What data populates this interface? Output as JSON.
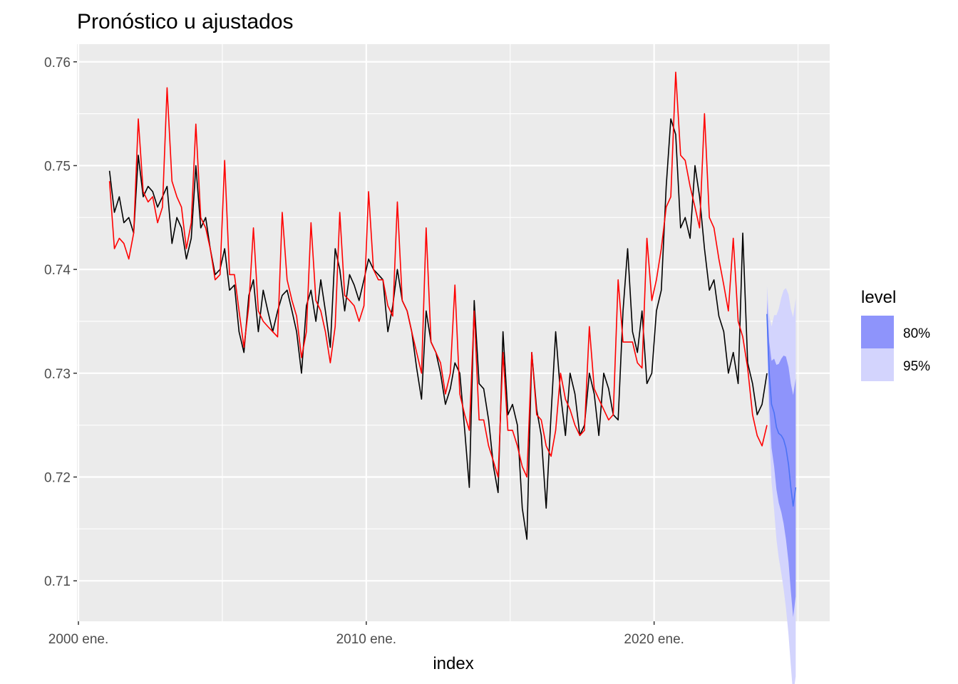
{
  "chart_data": {
    "type": "line",
    "title": "Pronóstico u ajustados",
    "xlabel": "index",
    "ylabel": "",
    "xlim": [
      1999.95,
      2026.1
    ],
    "ylim": [
      0.7061,
      0.7617
    ],
    "y_ticks": [
      "0.71",
      "0.72",
      "0.73",
      "0.74",
      "0.75",
      "0.76"
    ],
    "y_tick_values": [
      0.71,
      0.72,
      0.73,
      0.74,
      0.75,
      0.76
    ],
    "x_ticks": [
      "2000 ene.",
      "2010 ene.",
      "2020 ene."
    ],
    "x_tick_values": [
      2000,
      2010,
      2020
    ],
    "grid": true,
    "legend": {
      "title": "level",
      "position": "right",
      "items": [
        {
          "label": "80%",
          "color": "#8e94fb"
        },
        {
          "label": "95%",
          "color": "#d3d4fd"
        }
      ]
    },
    "colors": {
      "panel": "#ebebeb",
      "grid": "#ffffff",
      "actual": "#000000",
      "fitted": "#ff0000",
      "forecast_mean": "#4c72f5",
      "band80": "#8e94fb",
      "band95": "#d3d4fd"
    },
    "series": [
      {
        "color": "#000000",
        "x": [
          2001.08,
          2001.25,
          2001.42,
          2001.58,
          2001.75,
          2001.92,
          2002.08,
          2002.25,
          2002.42,
          2002.58,
          2002.75,
          2002.92,
          2003.08,
          2003.25,
          2003.42,
          2003.58,
          2003.75,
          2003.92,
          2004.08,
          2004.25,
          2004.42,
          2004.58,
          2004.75,
          2004.92,
          2005.08,
          2005.25,
          2005.42,
          2005.58,
          2005.75,
          2005.92,
          2006.08,
          2006.25,
          2006.42,
          2006.58,
          2006.75,
          2006.92,
          2007.08,
          2007.25,
          2007.42,
          2007.58,
          2007.75,
          2007.92,
          2008.08,
          2008.25,
          2008.42,
          2008.58,
          2008.75,
          2008.92,
          2009.08,
          2009.25,
          2009.42,
          2009.58,
          2009.75,
          2009.92,
          2010.08,
          2010.25,
          2010.42,
          2010.58,
          2010.75,
          2010.92,
          2011.08,
          2011.25,
          2011.42,
          2011.58,
          2011.75,
          2011.92,
          2012.08,
          2012.25,
          2012.42,
          2012.58,
          2012.75,
          2012.92,
          2013.08,
          2013.25,
          2013.42,
          2013.58,
          2013.75,
          2013.92,
          2014.08,
          2014.25,
          2014.42,
          2014.58,
          2014.75,
          2014.92,
          2015.08,
          2015.25,
          2015.42,
          2015.58,
          2015.75,
          2015.92,
          2016.08,
          2016.25,
          2016.42,
          2016.58,
          2016.75,
          2016.92,
          2017.08,
          2017.25,
          2017.42,
          2017.58,
          2017.75,
          2017.92,
          2018.08,
          2018.25,
          2018.42,
          2018.58,
          2018.75,
          2018.92,
          2019.08,
          2019.25,
          2019.42,
          2019.58,
          2019.75,
          2019.92,
          2020.08,
          2020.25,
          2020.42,
          2020.58,
          2020.75,
          2020.92,
          2021.08,
          2021.25,
          2021.42,
          2021.58,
          2021.75,
          2021.92,
          2022.08,
          2022.25,
          2022.42,
          2022.58,
          2022.75,
          2022.92,
          2023.08,
          2023.25,
          2023.42,
          2023.58,
          2023.75,
          2023.92
        ],
        "y": [
          0.7495,
          0.7455,
          0.747,
          0.7445,
          0.745,
          0.7435,
          0.751,
          0.747,
          0.748,
          0.7475,
          0.746,
          0.747,
          0.748,
          0.7425,
          0.745,
          0.744,
          0.741,
          0.743,
          0.75,
          0.744,
          0.745,
          0.742,
          0.7395,
          0.74,
          0.742,
          0.738,
          0.7385,
          0.734,
          0.732,
          0.7375,
          0.739,
          0.734,
          0.738,
          0.736,
          0.734,
          0.736,
          0.7375,
          0.738,
          0.736,
          0.734,
          0.73,
          0.7365,
          0.738,
          0.735,
          0.739,
          0.736,
          0.7325,
          0.742,
          0.74,
          0.736,
          0.7395,
          0.7385,
          0.737,
          0.739,
          0.741,
          0.74,
          0.7395,
          0.739,
          0.734,
          0.7365,
          0.74,
          0.737,
          0.736,
          0.734,
          0.7305,
          0.7275,
          0.736,
          0.733,
          0.732,
          0.73,
          0.727,
          0.7285,
          0.731,
          0.73,
          0.7245,
          0.719,
          0.737,
          0.729,
          0.7285,
          0.7255,
          0.721,
          0.7185,
          0.734,
          0.726,
          0.727,
          0.725,
          0.717,
          0.714,
          0.732,
          0.7265,
          0.724,
          0.717,
          0.726,
          0.734,
          0.728,
          0.724,
          0.73,
          0.728,
          0.724,
          0.725,
          0.73,
          0.728,
          0.724,
          0.73,
          0.7285,
          0.726,
          0.7255,
          0.736,
          0.742,
          0.734,
          0.732,
          0.736,
          0.729,
          0.73,
          0.736,
          0.738,
          0.748,
          0.7545,
          0.753,
          0.744,
          0.745,
          0.743,
          0.75,
          0.747,
          0.742,
          0.738,
          0.739,
          0.7355,
          0.734,
          0.73,
          0.732,
          0.729,
          0.7435,
          0.731,
          0.729,
          0.726,
          0.727,
          0.73
        ]
      },
      {
        "color": "#ff0000",
        "x": [
          2001.08,
          2001.25,
          2001.42,
          2001.58,
          2001.75,
          2001.92,
          2002.08,
          2002.25,
          2002.42,
          2002.58,
          2002.75,
          2002.92,
          2003.08,
          2003.25,
          2003.42,
          2003.58,
          2003.75,
          2003.92,
          2004.08,
          2004.25,
          2004.42,
          2004.58,
          2004.75,
          2004.92,
          2005.08,
          2005.25,
          2005.42,
          2005.58,
          2005.75,
          2005.92,
          2006.08,
          2006.25,
          2006.42,
          2006.58,
          2006.75,
          2006.92,
          2007.08,
          2007.25,
          2007.42,
          2007.58,
          2007.75,
          2007.92,
          2008.08,
          2008.25,
          2008.42,
          2008.58,
          2008.75,
          2008.92,
          2009.08,
          2009.25,
          2009.42,
          2009.58,
          2009.75,
          2009.92,
          2010.08,
          2010.25,
          2010.42,
          2010.58,
          2010.75,
          2010.92,
          2011.08,
          2011.25,
          2011.42,
          2011.58,
          2011.75,
          2011.92,
          2012.08,
          2012.25,
          2012.42,
          2012.58,
          2012.75,
          2012.92,
          2013.08,
          2013.25,
          2013.42,
          2013.58,
          2013.75,
          2013.92,
          2014.08,
          2014.25,
          2014.42,
          2014.58,
          2014.75,
          2014.92,
          2015.08,
          2015.25,
          2015.42,
          2015.58,
          2015.75,
          2015.92,
          2016.08,
          2016.25,
          2016.42,
          2016.58,
          2016.75,
          2016.92,
          2017.08,
          2017.25,
          2017.42,
          2017.58,
          2017.75,
          2017.92,
          2018.08,
          2018.25,
          2018.42,
          2018.58,
          2018.75,
          2018.92,
          2019.08,
          2019.25,
          2019.42,
          2019.58,
          2019.75,
          2019.92,
          2020.08,
          2020.25,
          2020.42,
          2020.58,
          2020.75,
          2020.92,
          2021.08,
          2021.25,
          2021.42,
          2021.58,
          2021.75,
          2021.92,
          2022.08,
          2022.25,
          2022.42,
          2022.58,
          2022.75,
          2022.92,
          2023.08,
          2023.25,
          2023.42,
          2023.58,
          2023.75,
          2023.92
        ],
        "y": [
          0.7485,
          0.742,
          0.743,
          0.7425,
          0.741,
          0.7435,
          0.7545,
          0.7475,
          0.7465,
          0.747,
          0.7445,
          0.746,
          0.7575,
          0.7485,
          0.747,
          0.746,
          0.742,
          0.7445,
          0.754,
          0.745,
          0.744,
          0.742,
          0.739,
          0.7395,
          0.7505,
          0.7395,
          0.7395,
          0.736,
          0.7325,
          0.7365,
          0.744,
          0.736,
          0.735,
          0.7345,
          0.734,
          0.7335,
          0.7455,
          0.739,
          0.737,
          0.7355,
          0.7315,
          0.734,
          0.7445,
          0.737,
          0.736,
          0.734,
          0.731,
          0.7345,
          0.7455,
          0.7375,
          0.737,
          0.7365,
          0.735,
          0.7365,
          0.7475,
          0.74,
          0.739,
          0.739,
          0.7365,
          0.7355,
          0.7465,
          0.737,
          0.736,
          0.734,
          0.732,
          0.73,
          0.744,
          0.733,
          0.732,
          0.731,
          0.728,
          0.73,
          0.7385,
          0.728,
          0.726,
          0.7245,
          0.736,
          0.7255,
          0.7255,
          0.723,
          0.7215,
          0.72,
          0.732,
          0.7245,
          0.7245,
          0.723,
          0.721,
          0.72,
          0.732,
          0.726,
          0.7255,
          0.723,
          0.722,
          0.7245,
          0.73,
          0.7275,
          0.7265,
          0.725,
          0.724,
          0.7245,
          0.7345,
          0.7285,
          0.7275,
          0.7265,
          0.7255,
          0.726,
          0.739,
          0.733,
          0.733,
          0.733,
          0.731,
          0.7305,
          0.743,
          0.737,
          0.739,
          0.742,
          0.746,
          0.747,
          0.759,
          0.751,
          0.7505,
          0.748,
          0.746,
          0.744,
          0.755,
          0.745,
          0.744,
          0.741,
          0.7385,
          0.736,
          0.743,
          0.735,
          0.7335,
          0.7305,
          0.726,
          0.724,
          0.723,
          0.725
        ]
      },
      {
        "color": "#4c72f5",
        "x": [
          2023.92,
          2024.0,
          2024.08,
          2024.17,
          2024.25,
          2024.33,
          2024.42,
          2024.5,
          2024.58,
          2024.67,
          2024.75,
          2024.83,
          2024.92
        ],
        "y": [
          0.7357,
          0.73,
          0.727,
          0.7262,
          0.7248,
          0.7242,
          0.724,
          0.7236,
          0.7228,
          0.7212,
          0.719,
          0.7172,
          0.719
        ]
      }
    ],
    "forecast_bands": {
      "x": [
        2023.92,
        2024.0,
        2024.08,
        2024.17,
        2024.25,
        2024.33,
        2024.42,
        2024.5,
        2024.58,
        2024.67,
        2024.75,
        2024.83,
        2024.92
      ],
      "lo80": [
        0.7343,
        0.727,
        0.7228,
        0.721,
        0.7188,
        0.7175,
        0.7166,
        0.7155,
        0.714,
        0.7118,
        0.709,
        0.7065,
        0.7085
      ],
      "hi80": [
        0.7371,
        0.733,
        0.7312,
        0.7314,
        0.7308,
        0.7309,
        0.7314,
        0.7317,
        0.7316,
        0.7306,
        0.729,
        0.7279,
        0.7295
      ],
      "lo95": [
        0.733,
        0.7245,
        0.7195,
        0.7168,
        0.714,
        0.7122,
        0.7107,
        0.7092,
        0.7074,
        0.7048,
        0.7018,
        0.699,
        0.7008
      ],
      "hi95": [
        0.7384,
        0.7355,
        0.7345,
        0.7356,
        0.7356,
        0.7362,
        0.7373,
        0.738,
        0.7382,
        0.7376,
        0.7362,
        0.7354,
        0.7372
      ]
    }
  }
}
